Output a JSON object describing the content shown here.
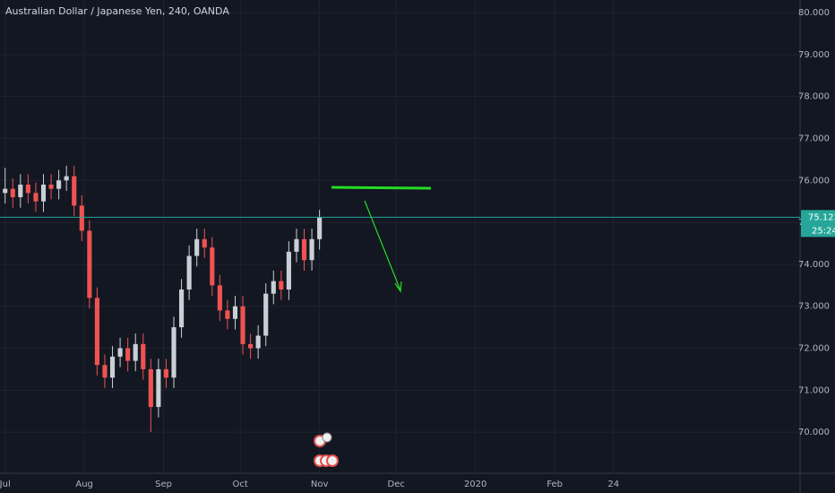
{
  "chart_data": {
    "type": "candlestick",
    "title": "Australian Dollar / Japanese Yen, 240, OANDA",
    "x": [
      0,
      3,
      6,
      9,
      12,
      15,
      18,
      21,
      24,
      27,
      30,
      33,
      36,
      39,
      42,
      45,
      48,
      51,
      54,
      57,
      60,
      63,
      66,
      69,
      72,
      75,
      78,
      81,
      84,
      87,
      90,
      93,
      96,
      99,
      102,
      105,
      108,
      111,
      114,
      117,
      120,
      123
    ],
    "open": [
      75.7,
      75.8,
      75.6,
      75.9,
      75.7,
      75.5,
      75.9,
      75.8,
      76.0,
      76.1,
      75.4,
      74.8,
      73.2,
      71.6,
      71.3,
      71.8,
      72.0,
      71.7,
      72.1,
      71.5,
      70.6,
      71.5,
      71.3,
      72.5,
      73.4,
      74.2,
      74.6,
      74.4,
      73.5,
      72.9,
      72.7,
      73.0,
      72.1,
      72.0,
      72.3,
      73.3,
      73.6,
      73.4,
      74.3,
      74.6,
      74.1,
      74.6
    ],
    "high": [
      76.3,
      76.05,
      76.15,
      76.15,
      75.95,
      76.15,
      76.15,
      76.25,
      76.35,
      76.35,
      75.65,
      75.05,
      73.45,
      71.85,
      72.05,
      72.25,
      72.25,
      72.35,
      72.35,
      71.75,
      71.75,
      71.75,
      72.75,
      73.65,
      74.45,
      74.85,
      74.85,
      74.65,
      73.75,
      73.15,
      73.25,
      73.25,
      72.35,
      72.55,
      73.55,
      73.85,
      73.85,
      74.55,
      74.85,
      74.85,
      74.85,
      75.3
    ],
    "low": [
      75.45,
      75.35,
      75.35,
      75.45,
      75.25,
      75.25,
      75.55,
      75.55,
      75.75,
      75.15,
      74.55,
      72.95,
      71.35,
      71.05,
      71.05,
      71.55,
      71.45,
      71.45,
      71.25,
      70.0,
      70.35,
      71.05,
      71.05,
      72.25,
      73.15,
      73.95,
      74.15,
      73.25,
      72.65,
      72.45,
      72.45,
      71.85,
      71.75,
      71.75,
      72.05,
      73.05,
      73.15,
      73.15,
      74.05,
      73.85,
      73.85,
      74.35
    ],
    "close": [
      75.8,
      75.6,
      75.9,
      75.7,
      75.5,
      75.9,
      75.8,
      76.0,
      76.1,
      75.4,
      74.8,
      73.2,
      71.6,
      71.3,
      71.8,
      72.0,
      71.7,
      72.1,
      71.5,
      70.6,
      71.5,
      71.3,
      72.5,
      73.4,
      74.2,
      74.6,
      74.4,
      73.5,
      72.9,
      72.7,
      73.0,
      72.1,
      72.0,
      72.3,
      73.3,
      73.6,
      73.4,
      74.3,
      74.6,
      74.1,
      74.6,
      75.12
    ],
    "up_color": "#c8d0d6",
    "down_color": "#ef5350",
    "xlim": [
      -2,
      311
    ],
    "xticks": [
      {
        "value": 0,
        "label": "Jul"
      },
      {
        "value": 31,
        "label": "Aug"
      },
      {
        "value": 62,
        "label": "Sep"
      },
      {
        "value": 92,
        "label": "Oct"
      },
      {
        "value": 123,
        "label": "Nov"
      },
      {
        "value": 153,
        "label": "Dec"
      },
      {
        "value": 184,
        "label": "2020"
      },
      {
        "value": 215,
        "label": "Feb"
      },
      {
        "value": 238,
        "label": "24"
      }
    ],
    "ylim": [
      69.02,
      80.3
    ],
    "yticks": [
      {
        "value": 70,
        "label": "70.000"
      },
      {
        "value": 71,
        "label": "71.000"
      },
      {
        "value": 72,
        "label": "72.000"
      },
      {
        "value": 73,
        "label": "73.000"
      },
      {
        "value": 74,
        "label": "74.000"
      },
      {
        "value": 75,
        "label": "75.000"
      },
      {
        "value": 76,
        "label": "76.000"
      },
      {
        "value": 77,
        "label": "77.000"
      },
      {
        "value": 78,
        "label": "78.000"
      },
      {
        "value": 79,
        "label": "79.000"
      },
      {
        "value": 80,
        "label": "80.000"
      }
    ],
    "grid": true,
    "last_price": 75.123,
    "last_price_color": "#26a69a",
    "countdown": "25:24"
  }
}
